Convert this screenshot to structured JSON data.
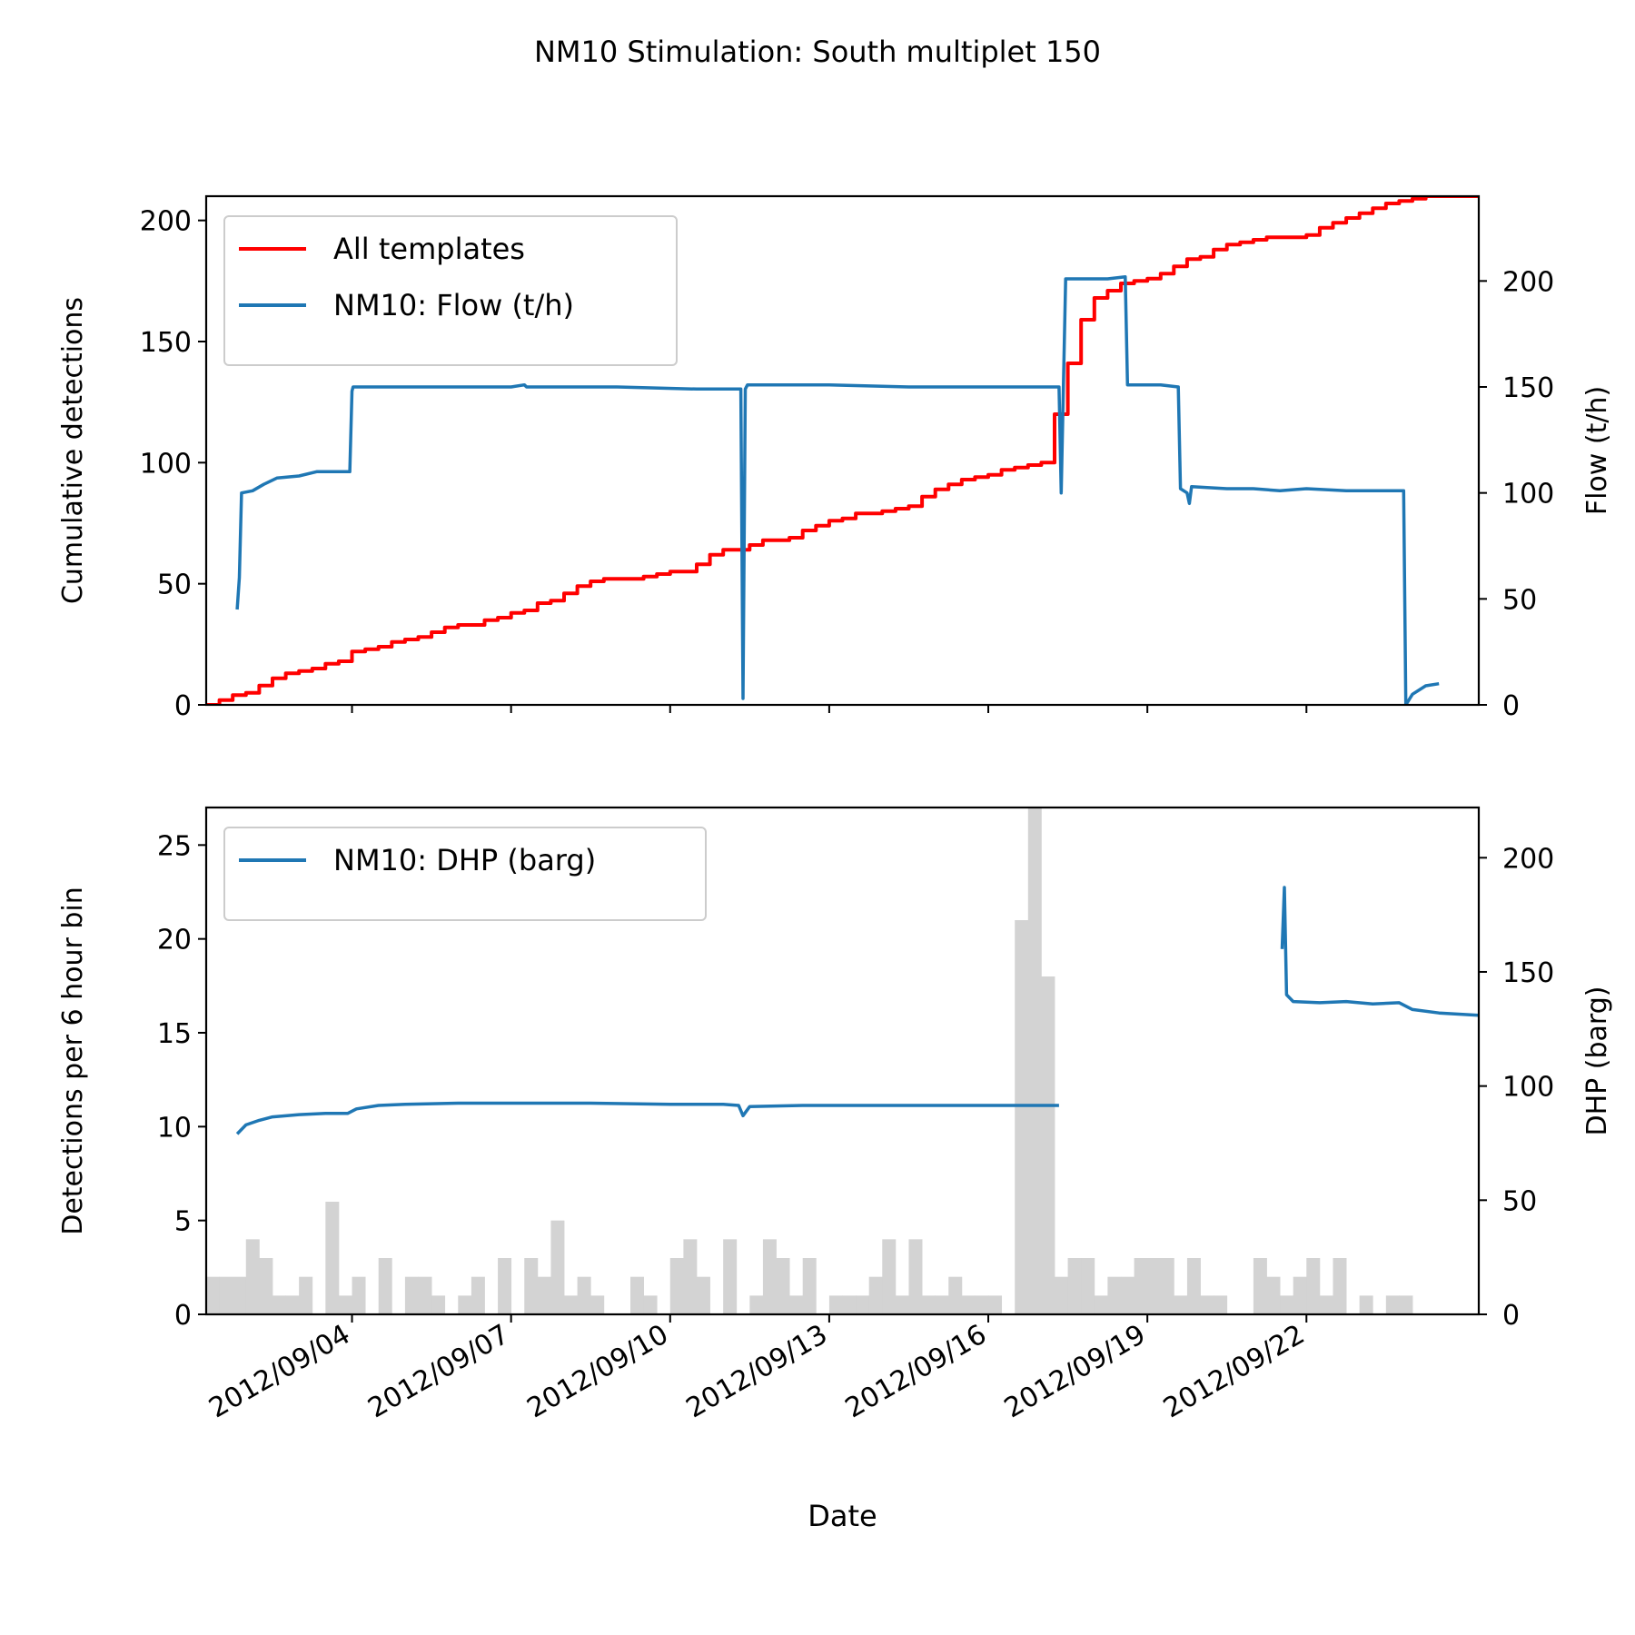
{
  "figure": {
    "title": "NM10 Stimulation: South multiplet 150"
  },
  "chart_data": [
    {
      "type": "line",
      "panel": "top",
      "xlabel": "",
      "ylabel_left": "Cumulative detections",
      "ylabel_right": "Flow (t/h)",
      "xlim": [
        "2012-09-01T06:00",
        "2012-09-25T06:00"
      ],
      "ylim_left": [
        0,
        210
      ],
      "ylim_right": [
        0,
        240
      ],
      "left_ticks": [
        0,
        50,
        100,
        150,
        200
      ],
      "right_ticks": [
        0,
        50,
        100,
        150,
        200
      ],
      "x_ticks": [
        "2012-09-04",
        "2012-09-07",
        "2012-09-10",
        "2012-09-13",
        "2012-09-16",
        "2012-09-19",
        "2012-09-22"
      ],
      "grid": false,
      "legend": {
        "position": "upper-left",
        "entries": [
          {
            "label": "All templates",
            "color": "#ff0000"
          },
          {
            "label": "NM10: Flow (t/h)",
            "color": "#1f77b4"
          }
        ]
      },
      "series": [
        {
          "name": "All templates",
          "axis": "left",
          "color": "#ff0000",
          "step": true,
          "points": [
            [
              "2012-09-01T06:00",
              0
            ],
            [
              "2012-09-01T12:00",
              2
            ],
            [
              "2012-09-01T18:00",
              4
            ],
            [
              "2012-09-02T00:00",
              5
            ],
            [
              "2012-09-02T06:00",
              8
            ],
            [
              "2012-09-02T12:00",
              11
            ],
            [
              "2012-09-02T18:00",
              13
            ],
            [
              "2012-09-03T00:00",
              14
            ],
            [
              "2012-09-03T06:00",
              15
            ],
            [
              "2012-09-03T12:00",
              17
            ],
            [
              "2012-09-03T18:00",
              18
            ],
            [
              "2012-09-04T00:00",
              22
            ],
            [
              "2012-09-04T06:00",
              23
            ],
            [
              "2012-09-04T12:00",
              24
            ],
            [
              "2012-09-04T18:00",
              26
            ],
            [
              "2012-09-05T00:00",
              27
            ],
            [
              "2012-09-05T06:00",
              28
            ],
            [
              "2012-09-05T12:00",
              30
            ],
            [
              "2012-09-05T18:00",
              32
            ],
            [
              "2012-09-06T00:00",
              33
            ],
            [
              "2012-09-06T06:00",
              33
            ],
            [
              "2012-09-06T12:00",
              35
            ],
            [
              "2012-09-06T18:00",
              36
            ],
            [
              "2012-09-07T00:00",
              38
            ],
            [
              "2012-09-07T06:00",
              39
            ],
            [
              "2012-09-07T12:00",
              42
            ],
            [
              "2012-09-07T18:00",
              43
            ],
            [
              "2012-09-08T00:00",
              46
            ],
            [
              "2012-09-08T06:00",
              49
            ],
            [
              "2012-09-08T12:00",
              51
            ],
            [
              "2012-09-08T18:00",
              52
            ],
            [
              "2012-09-09T00:00",
              52
            ],
            [
              "2012-09-09T06:00",
              52
            ],
            [
              "2012-09-09T12:00",
              53
            ],
            [
              "2012-09-09T18:00",
              54
            ],
            [
              "2012-09-10T00:00",
              55
            ],
            [
              "2012-09-10T06:00",
              55
            ],
            [
              "2012-09-10T12:00",
              58
            ],
            [
              "2012-09-10T18:00",
              62
            ],
            [
              "2012-09-11T00:00",
              64
            ],
            [
              "2012-09-11T06:00",
              64
            ],
            [
              "2012-09-11T12:00",
              66
            ],
            [
              "2012-09-11T18:00",
              68
            ],
            [
              "2012-09-12T00:00",
              68
            ],
            [
              "2012-09-12T06:00",
              69
            ],
            [
              "2012-09-12T12:00",
              72
            ],
            [
              "2012-09-12T18:00",
              74
            ],
            [
              "2012-09-13T00:00",
              76
            ],
            [
              "2012-09-13T06:00",
              77
            ],
            [
              "2012-09-13T12:00",
              79
            ],
            [
              "2012-09-13T18:00",
              79
            ],
            [
              "2012-09-14T00:00",
              80
            ],
            [
              "2012-09-14T06:00",
              81
            ],
            [
              "2012-09-14T12:00",
              82
            ],
            [
              "2012-09-14T18:00",
              86
            ],
            [
              "2012-09-15T00:00",
              89
            ],
            [
              "2012-09-15T06:00",
              91
            ],
            [
              "2012-09-15T12:00",
              93
            ],
            [
              "2012-09-15T18:00",
              94
            ],
            [
              "2012-09-16T00:00",
              95
            ],
            [
              "2012-09-16T06:00",
              97
            ],
            [
              "2012-09-16T12:00",
              98
            ],
            [
              "2012-09-16T18:00",
              99
            ],
            [
              "2012-09-17T00:00",
              100
            ],
            [
              "2012-09-17T06:00",
              120
            ],
            [
              "2012-09-17T12:00",
              141
            ],
            [
              "2012-09-17T18:00",
              159
            ],
            [
              "2012-09-18T00:00",
              168
            ],
            [
              "2012-09-18T06:00",
              171
            ],
            [
              "2012-09-18T12:00",
              174
            ],
            [
              "2012-09-18T18:00",
              175
            ],
            [
              "2012-09-19T00:00",
              176
            ],
            [
              "2012-09-19T06:00",
              178
            ],
            [
              "2012-09-19T12:00",
              181
            ],
            [
              "2012-09-19T18:00",
              184
            ],
            [
              "2012-09-20T00:00",
              185
            ],
            [
              "2012-09-20T06:00",
              188
            ],
            [
              "2012-09-20T12:00",
              190
            ],
            [
              "2012-09-20T18:00",
              191
            ],
            [
              "2012-09-21T00:00",
              192
            ],
            [
              "2012-09-21T06:00",
              193
            ],
            [
              "2012-09-21T12:00",
              193
            ],
            [
              "2012-09-21T18:00",
              193
            ],
            [
              "2012-09-22T00:00",
              194
            ],
            [
              "2012-09-22T06:00",
              197
            ],
            [
              "2012-09-22T12:00",
              199
            ],
            [
              "2012-09-22T18:00",
              201
            ],
            [
              "2012-09-23T00:00",
              203
            ],
            [
              "2012-09-23T06:00",
              205
            ],
            [
              "2012-09-23T12:00",
              207
            ],
            [
              "2012-09-23T18:00",
              208
            ],
            [
              "2012-09-24T00:00",
              209
            ],
            [
              "2012-09-24T06:00",
              210
            ],
            [
              "2012-09-25T06:00",
              211
            ]
          ]
        },
        {
          "name": "NM10: Flow (t/h)",
          "axis": "right",
          "color": "#1f77b4",
          "step": false,
          "points": [
            [
              "2012-09-01T20:00",
              45
            ],
            [
              "2012-09-01T21:00",
              60
            ],
            [
              "2012-09-01T22:00",
              100
            ],
            [
              "2012-09-02T03:00",
              101
            ],
            [
              "2012-09-02T08:00",
              104
            ],
            [
              "2012-09-02T14:00",
              107
            ],
            [
              "2012-09-03T00:00",
              108
            ],
            [
              "2012-09-03T08:00",
              110
            ],
            [
              "2012-09-03T16:00",
              110
            ],
            [
              "2012-09-03T23:00",
              110
            ],
            [
              "2012-09-04T00:00",
              148
            ],
            [
              "2012-09-04T00:30",
              150
            ],
            [
              "2012-09-05T12:00",
              150
            ],
            [
              "2012-09-07T00:00",
              150
            ],
            [
              "2012-09-07T06:00",
              151
            ],
            [
              "2012-09-07T07:00",
              150
            ],
            [
              "2012-09-09T00:00",
              150
            ],
            [
              "2012-09-10T12:00",
              149
            ],
            [
              "2012-09-11T08:00",
              149
            ],
            [
              "2012-09-11T09:00",
              3
            ],
            [
              "2012-09-11T10:00",
              149
            ],
            [
              "2012-09-11T11:00",
              151
            ],
            [
              "2012-09-13T00:00",
              151
            ],
            [
              "2012-09-14T12:00",
              150
            ],
            [
              "2012-09-16T00:00",
              150
            ],
            [
              "2012-09-17T06:00",
              150
            ],
            [
              "2012-09-17T08:00",
              150
            ],
            [
              "2012-09-17T09:00",
              100
            ],
            [
              "2012-09-17T10:00",
              150
            ],
            [
              "2012-09-17T11:00",
              201
            ],
            [
              "2012-09-18T06:00",
              201
            ],
            [
              "2012-09-18T14:00",
              202
            ],
            [
              "2012-09-18T15:00",
              151
            ],
            [
              "2012-09-19T06:00",
              151
            ],
            [
              "2012-09-19T14:00",
              150
            ],
            [
              "2012-09-19T15:00",
              102
            ],
            [
              "2012-09-19T18:00",
              100
            ],
            [
              "2012-09-19T19:00",
              95
            ],
            [
              "2012-09-19T20:00",
              103
            ],
            [
              "2012-09-20T12:00",
              102
            ],
            [
              "2012-09-21T00:00",
              102
            ],
            [
              "2012-09-21T12:00",
              101
            ],
            [
              "2012-09-22T00:00",
              102
            ],
            [
              "2012-09-22T18:00",
              101
            ],
            [
              "2012-09-23T12:00",
              101
            ],
            [
              "2012-09-23T20:00",
              101
            ],
            [
              "2012-09-23T21:00",
              0
            ],
            [
              "2012-09-24T00:00",
              5
            ],
            [
              "2012-09-24T06:00",
              9
            ],
            [
              "2012-09-24T12:00",
              10
            ]
          ]
        }
      ]
    },
    {
      "type": "bar",
      "panel": "bottom",
      "xlabel": "Date",
      "ylabel_left": "Detections per 6 hour bin",
      "ylabel_right": "DHP (barg)",
      "xlim": [
        "2012-09-01T06:00",
        "2012-09-25T06:00"
      ],
      "ylim_left": [
        0,
        27
      ],
      "ylim_right": [
        0,
        222
      ],
      "left_ticks": [
        0,
        5,
        10,
        15,
        20,
        25
      ],
      "right_ticks": [
        0,
        50,
        100,
        150,
        200
      ],
      "x_ticks": [
        "2012/09/04",
        "2012/09/07",
        "2012/09/10",
        "2012/09/13",
        "2012/09/16",
        "2012/09/19",
        "2012/09/22"
      ],
      "grid": false,
      "legend": {
        "position": "upper-left",
        "entries": [
          {
            "label": "NM10: DHP (barg)",
            "color": "#1f77b4"
          }
        ]
      },
      "histogram": {
        "name": "Detections per 6 hour bin",
        "color": "#d3d3d3",
        "bin_hours": 6,
        "start": "2012-09-01T06:00",
        "values": [
          2,
          2,
          2,
          4,
          3,
          1,
          1,
          2,
          0,
          6,
          1,
          2,
          0,
          3,
          0,
          2,
          2,
          1,
          0,
          1,
          2,
          0,
          3,
          0,
          3,
          2,
          5,
          1,
          2,
          1,
          0,
          0,
          2,
          1,
          0,
          3,
          4,
          2,
          0,
          4,
          0,
          1,
          4,
          3,
          1,
          3,
          0,
          1,
          1,
          1,
          2,
          4,
          1,
          4,
          1,
          1,
          2,
          1,
          1,
          1,
          0,
          21,
          27,
          18,
          2,
          3,
          3,
          1,
          2,
          2,
          3,
          3,
          3,
          1,
          3,
          1,
          1,
          0,
          0,
          3,
          2,
          1,
          2,
          3,
          1,
          3,
          0,
          1,
          0,
          1,
          1
        ]
      },
      "series": [
        {
          "name": "NM10: DHP (barg)",
          "axis": "right",
          "color": "#1f77b4",
          "step": false,
          "segments": [
            [
              [
                "2012-09-01T20:00",
                79
              ],
              [
                "2012-09-02T00:00",
                83
              ],
              [
                "2012-09-02T06:00",
                85
              ],
              [
                "2012-09-02T12:00",
                86.5
              ],
              [
                "2012-09-03T00:00",
                87.5
              ],
              [
                "2012-09-03T12:00",
                88
              ],
              [
                "2012-09-03T22:00",
                88
              ],
              [
                "2012-09-04T02:00",
                90
              ],
              [
                "2012-09-04T12:00",
                91.5
              ],
              [
                "2012-09-05T00:00",
                92
              ],
              [
                "2012-09-06T00:00",
                92.5
              ],
              [
                "2012-09-07T00:00",
                92.5
              ],
              [
                "2012-09-08T12:00",
                92.5
              ],
              [
                "2012-09-10T00:00",
                92
              ],
              [
                "2012-09-11T00:00",
                92
              ],
              [
                "2012-09-11T07:00",
                91.5
              ],
              [
                "2012-09-11T09:00",
                87
              ],
              [
                "2012-09-11T12:00",
                91
              ],
              [
                "2012-09-12T12:00",
                91.5
              ],
              [
                "2012-09-14T00:00",
                91.5
              ],
              [
                "2012-09-15T12:00",
                91.5
              ],
              [
                "2012-09-17T08:00",
                91.5
              ]
            ],
            [
              [
                "2012-09-21T13:00",
                160
              ],
              [
                "2012-09-21T14:00",
                187
              ],
              [
                "2012-09-21T15:00",
                140
              ],
              [
                "2012-09-21T18:00",
                137
              ],
              [
                "2012-09-22T06:00",
                136.5
              ],
              [
                "2012-09-22T18:00",
                137
              ],
              [
                "2012-09-23T06:00",
                136
              ],
              [
                "2012-09-23T18:00",
                136.5
              ],
              [
                "2012-09-24T00:00",
                133.5
              ],
              [
                "2012-09-24T12:00",
                132
              ],
              [
                "2012-09-25T06:00",
                131
              ]
            ]
          ]
        }
      ]
    }
  ]
}
